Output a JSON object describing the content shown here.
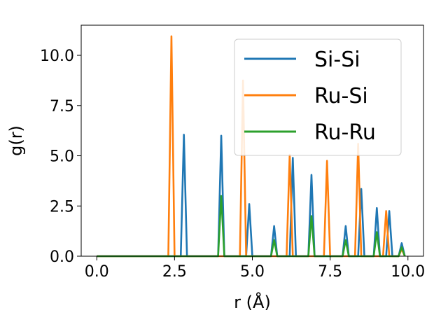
{
  "chart_data": {
    "type": "line",
    "title": "",
    "xlabel": "r (Å)",
    "ylabel": "g(r)",
    "xlim": [
      -0.5,
      10.5
    ],
    "ylim": [
      0,
      11.5
    ],
    "x_ticks": [
      {
        "value": 0,
        "label": "0.0"
      },
      {
        "value": 2.5,
        "label": "2.5"
      },
      {
        "value": 5,
        "label": "5.0"
      },
      {
        "value": 7.5,
        "label": "7.5"
      },
      {
        "value": 10,
        "label": "10.0"
      }
    ],
    "y_ticks": [
      {
        "value": 0,
        "label": "0.0"
      },
      {
        "value": 2.5,
        "label": "2.5"
      },
      {
        "value": 5,
        "label": "5.0"
      },
      {
        "value": 7.5,
        "label": "7.5"
      },
      {
        "value": 10,
        "label": "10.0"
      }
    ],
    "grid": false,
    "legend_position": "top-right",
    "series": [
      {
        "name": "Si-Si",
        "color": "#1f77b4",
        "points": [
          [
            0,
            0
          ],
          [
            2.7,
            0
          ],
          [
            2.8,
            6.05
          ],
          [
            2.9,
            0
          ],
          [
            3.9,
            0
          ],
          [
            4.0,
            6.0
          ],
          [
            4.1,
            0
          ],
          [
            4.8,
            0
          ],
          [
            4.9,
            2.6
          ],
          [
            5.0,
            0
          ],
          [
            5.6,
            0
          ],
          [
            5.7,
            1.5
          ],
          [
            5.8,
            0
          ],
          [
            6.2,
            0
          ],
          [
            6.3,
            4.9
          ],
          [
            6.4,
            0
          ],
          [
            6.8,
            0
          ],
          [
            6.9,
            4.05
          ],
          [
            7.0,
            0
          ],
          [
            7.9,
            0
          ],
          [
            8.0,
            1.5
          ],
          [
            8.1,
            0
          ],
          [
            8.4,
            0
          ],
          [
            8.5,
            3.35
          ],
          [
            8.6,
            0
          ],
          [
            8.9,
            0
          ],
          [
            9.0,
            2.4
          ],
          [
            9.1,
            0
          ],
          [
            9.3,
            0
          ],
          [
            9.4,
            2.25
          ],
          [
            9.5,
            0
          ],
          [
            9.7,
            0
          ],
          [
            9.8,
            0.65
          ],
          [
            9.9,
            0
          ]
        ]
      },
      {
        "name": "Ru-Si",
        "color": "#ff7f0e",
        "points": [
          [
            0,
            0
          ],
          [
            2.3,
            0
          ],
          [
            2.4,
            10.95
          ],
          [
            2.5,
            0
          ],
          [
            4.6,
            0
          ],
          [
            4.7,
            8.75
          ],
          [
            4.8,
            0
          ],
          [
            6.1,
            0
          ],
          [
            6.2,
            5.05
          ],
          [
            6.3,
            0
          ],
          [
            7.3,
            0
          ],
          [
            7.4,
            4.75
          ],
          [
            7.5,
            0
          ],
          [
            8.3,
            0
          ],
          [
            8.4,
            5.6
          ],
          [
            8.5,
            0
          ],
          [
            9.2,
            0
          ],
          [
            9.3,
            2.25
          ],
          [
            9.4,
            0
          ],
          [
            9.7,
            0
          ],
          [
            9.8,
            0.35
          ],
          [
            9.9,
            0
          ]
        ]
      },
      {
        "name": "Ru-Ru",
        "color": "#2ca02c",
        "points": [
          [
            0,
            0
          ],
          [
            3.9,
            0
          ],
          [
            4.0,
            3.0
          ],
          [
            4.1,
            0
          ],
          [
            5.6,
            0
          ],
          [
            5.7,
            0.8
          ],
          [
            5.8,
            0
          ],
          [
            6.8,
            0
          ],
          [
            6.9,
            2.0
          ],
          [
            7.0,
            0
          ],
          [
            7.9,
            0
          ],
          [
            8.0,
            0.8
          ],
          [
            8.1,
            0
          ],
          [
            8.9,
            0
          ],
          [
            9.0,
            1.2
          ],
          [
            9.1,
            0
          ],
          [
            9.7,
            0
          ],
          [
            9.8,
            0.45
          ],
          [
            9.9,
            0
          ]
        ]
      }
    ]
  }
}
